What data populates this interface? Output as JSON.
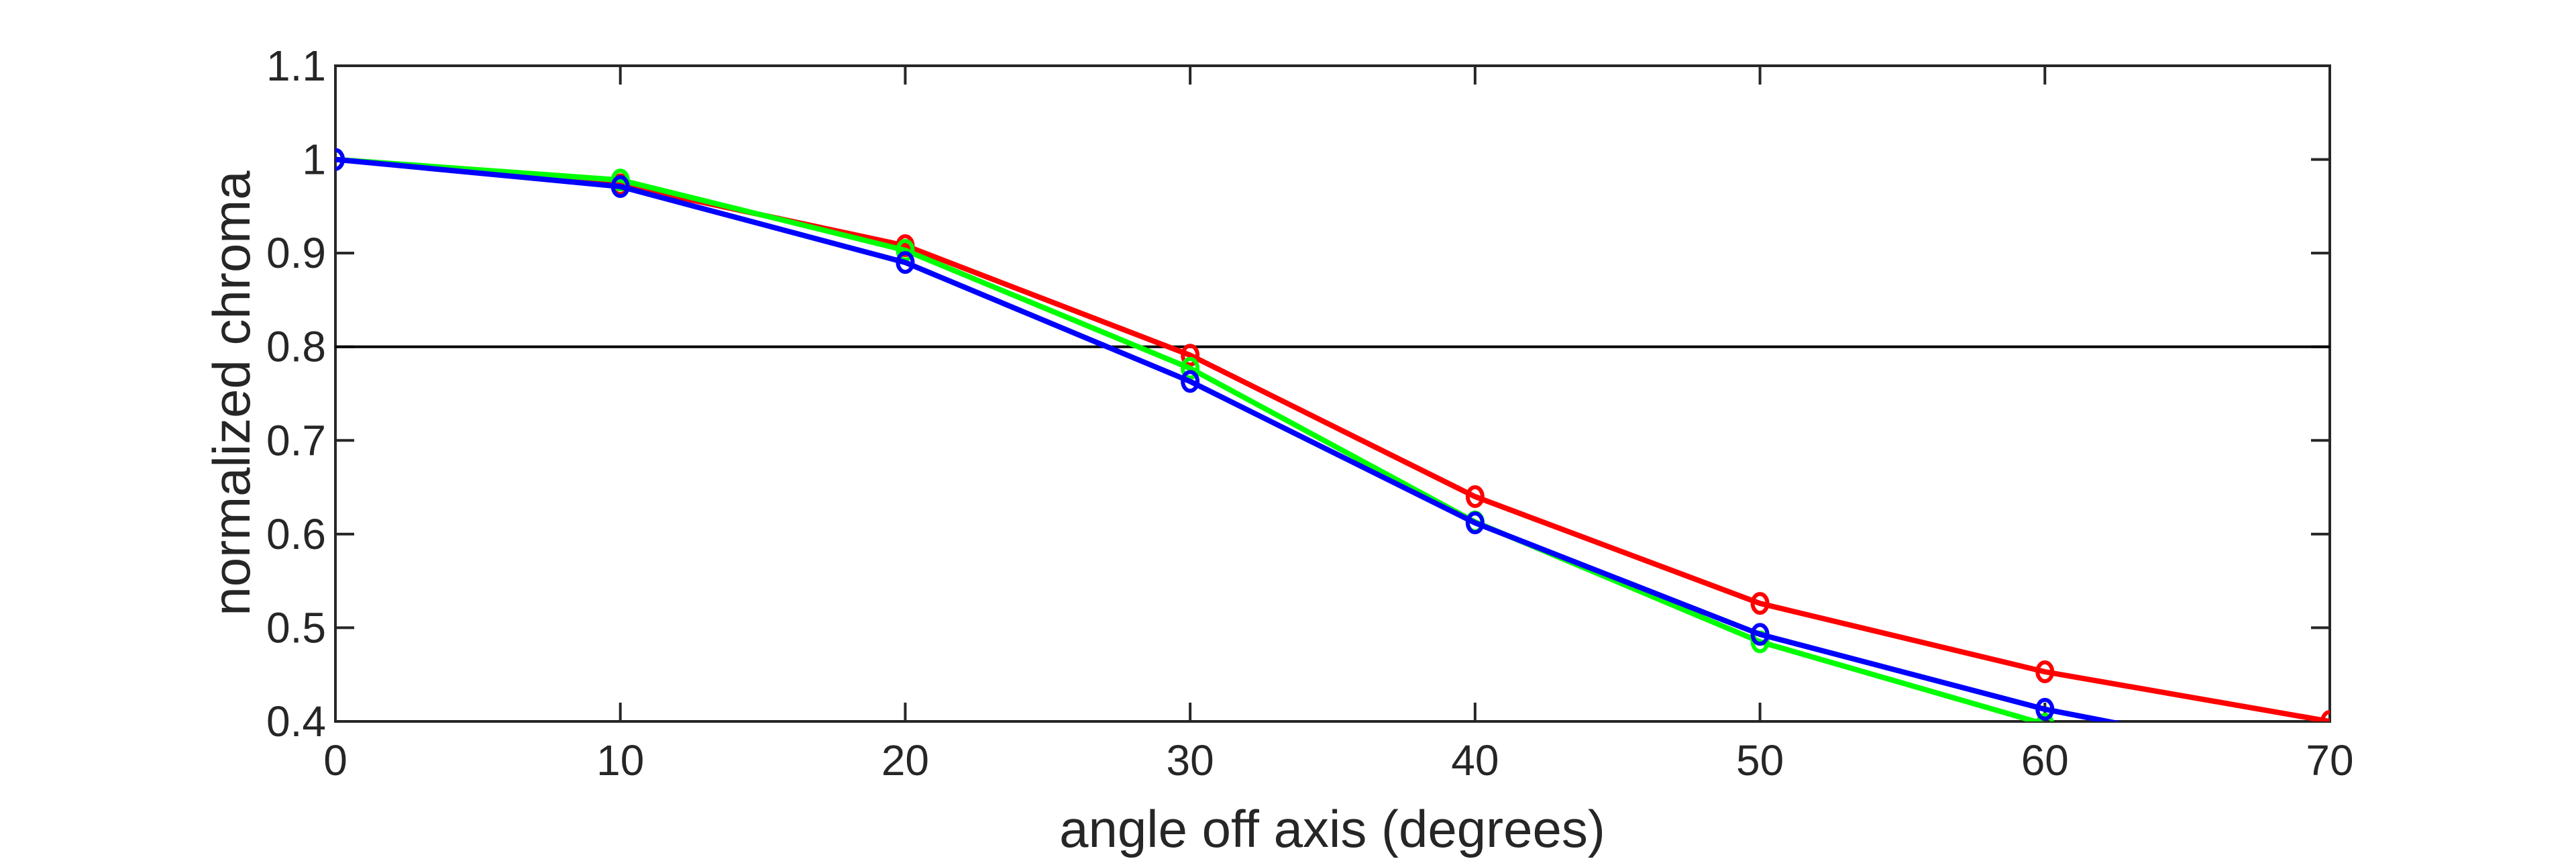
{
  "chart_data": {
    "type": "line",
    "title": "",
    "xlabel": "angle off axis (degrees)",
    "ylabel": "normalized chroma",
    "xlim": [
      0,
      70
    ],
    "ylim": [
      0.4,
      1.1
    ],
    "xticks": [
      "0",
      "10",
      "20",
      "30",
      "40",
      "50",
      "60",
      "70"
    ],
    "yticks": [
      "0.4",
      "0.5",
      "0.6",
      "0.7",
      "0.8",
      "0.9",
      "1",
      "1.1"
    ],
    "grid": false,
    "reference_line": {
      "y": 0.8,
      "color": "#000000"
    },
    "x": [
      0,
      10,
      20,
      30,
      40,
      50,
      60,
      70
    ],
    "series": [
      {
        "name": "red",
        "color": "#ff0000",
        "values": [
          1.0,
          0.973,
          0.908,
          0.791,
          0.64,
          0.526,
          0.453,
          0.4
        ]
      },
      {
        "name": "green",
        "color": "#00ff00",
        "values": [
          1.0,
          0.978,
          0.903,
          0.777,
          0.613,
          0.485,
          0.397,
          0.33
        ]
      },
      {
        "name": "blue",
        "color": "#0000ff",
        "values": [
          1.0,
          0.971,
          0.89,
          0.763,
          0.612,
          0.493,
          0.413,
          0.354
        ]
      }
    ]
  }
}
